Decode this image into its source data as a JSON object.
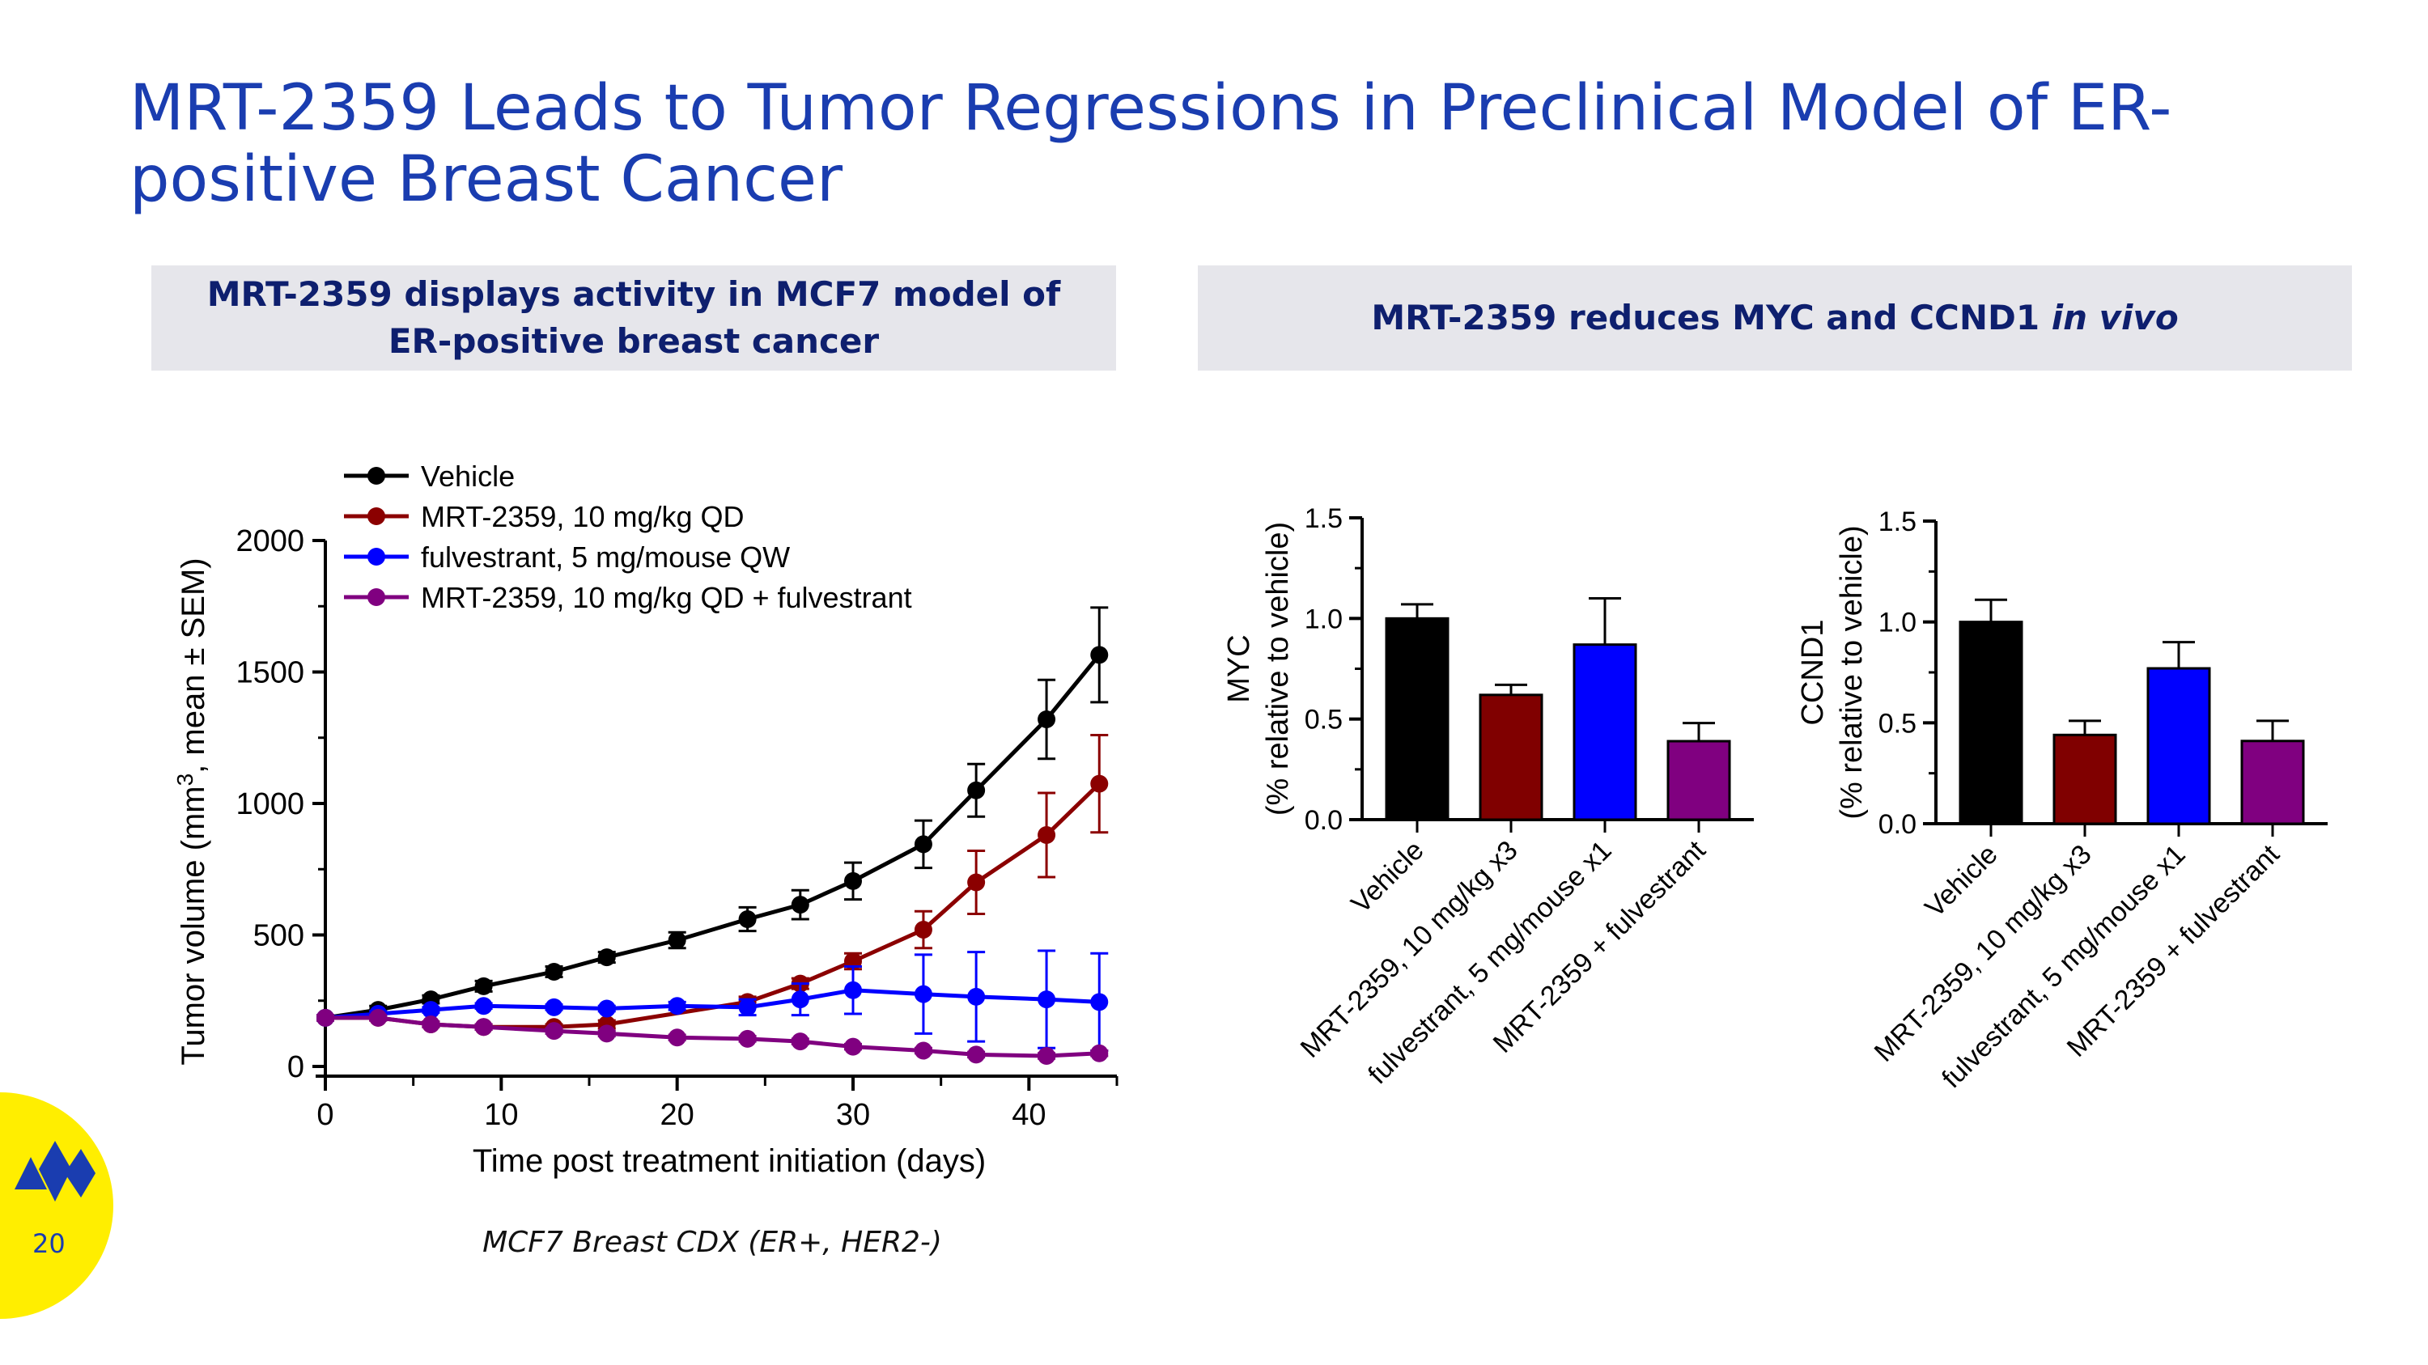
{
  "slide": {
    "title": "MRT-2359 Leads to Tumor Regressions in Preclinical Model of ER-positive Breast Cancer",
    "left_header": "MRT-2359 displays activity in MCF7 model of ER-positive breast cancer",
    "right_header_main": "MRT-2359 reduces MYC and CCND1 ",
    "right_header_italic": "in vivo",
    "caption": "MCF7 Breast CDX (ER+, HER2-)",
    "page_number": "20",
    "colors": {
      "title": "#1a3db0",
      "header_bg": "#e6e6eb",
      "logo_bg": "#ffee00",
      "logo_mark": "#1a3db0"
    }
  },
  "chart_data": [
    {
      "type": "line",
      "xlabel": "Time post treatment initiation (days)",
      "ylabel_prefix": "Tumor volume (mm",
      "ylabel_sup": "3",
      "ylabel_suffix": ", mean ± SEM)",
      "xlim": [
        0,
        45
      ],
      "ylim": [
        0,
        2000
      ],
      "xticks": [
        0,
        10,
        20,
        30,
        40
      ],
      "yticks": [
        0,
        500,
        1000,
        1500,
        2000
      ],
      "legend": "top-left",
      "series": [
        {
          "name": "Vehicle",
          "color": "#000000",
          "x": [
            0,
            3,
            6,
            9,
            13,
            16,
            20,
            24,
            27,
            30,
            34,
            37,
            41,
            44
          ],
          "y": [
            185,
            215,
            255,
            305,
            360,
            415,
            480,
            560,
            615,
            705,
            845,
            1050,
            1320,
            1565
          ],
          "err": [
            10,
            15,
            15,
            20,
            20,
            20,
            30,
            45,
            55,
            70,
            90,
            100,
            150,
            180
          ]
        },
        {
          "name": "MRT-2359, 10 mg/kg QD",
          "color": "#8b0000",
          "x": [
            0,
            3,
            6,
            9,
            13,
            16,
            24,
            27,
            30,
            34,
            37,
            41,
            44
          ],
          "y": [
            185,
            185,
            160,
            150,
            150,
            160,
            245,
            315,
            400,
            520,
            700,
            880,
            1075
          ],
          "err": [
            10,
            10,
            10,
            10,
            10,
            15,
            20,
            20,
            30,
            70,
            120,
            160,
            185
          ]
        },
        {
          "name": "fulvestrant, 5 mg/mouse QW",
          "color": "#0000ff",
          "x": [
            0,
            3,
            6,
            9,
            13,
            16,
            20,
            24,
            27,
            30,
            34,
            37,
            41,
            44
          ],
          "y": [
            185,
            200,
            215,
            230,
            225,
            220,
            230,
            225,
            255,
            290,
            275,
            265,
            255,
            245
          ],
          "err": [
            10,
            10,
            10,
            10,
            10,
            10,
            15,
            30,
            60,
            90,
            150,
            170,
            185,
            185
          ]
        },
        {
          "name": "MRT-2359, 10 mg/kg QD + fulvestrant",
          "color": "#800080",
          "x": [
            0,
            3,
            6,
            9,
            13,
            16,
            20,
            24,
            27,
            30,
            34,
            37,
            41,
            44
          ],
          "y": [
            185,
            185,
            160,
            150,
            135,
            125,
            110,
            105,
            95,
            75,
            60,
            45,
            40,
            50
          ],
          "err": [
            10,
            10,
            10,
            10,
            10,
            10,
            10,
            10,
            10,
            10,
            10,
            10,
            10,
            10
          ]
        }
      ]
    },
    {
      "type": "bar",
      "ylabel": "MYC",
      "ylabel2": "(% relative to vehicle)",
      "ylim": [
        0,
        1.5
      ],
      "yticks": [
        "0.0",
        "0.5",
        "1.0",
        "1.5"
      ],
      "categories": [
        "Vehicle",
        "MRT-2359, 10 mg/kg x3",
        "fulvestrant, 5 mg/mouse x1",
        "MRT-2359 + fulvestrant"
      ],
      "values": [
        1.0,
        0.62,
        0.87,
        0.39
      ],
      "err": [
        0.07,
        0.05,
        0.23,
        0.09
      ],
      "colors": [
        "#000000",
        "#800000",
        "#0000ff",
        "#800080"
      ]
    },
    {
      "type": "bar",
      "ylabel": "CCND1",
      "ylabel2": "(% relative to vehicle)",
      "ylim": [
        0,
        1.5
      ],
      "yticks": [
        "0.0",
        "0.5",
        "1.0",
        "1.5"
      ],
      "categories": [
        "Vehicle",
        "MRT-2359, 10 mg/kg x3",
        "fulvestrant, 5 mg/mouse x1",
        "MRT-2359 + fulvestrant"
      ],
      "values": [
        1.0,
        0.44,
        0.77,
        0.41
      ],
      "err": [
        0.11,
        0.07,
        0.13,
        0.1
      ],
      "colors": [
        "#000000",
        "#800000",
        "#0000ff",
        "#800080"
      ]
    }
  ]
}
